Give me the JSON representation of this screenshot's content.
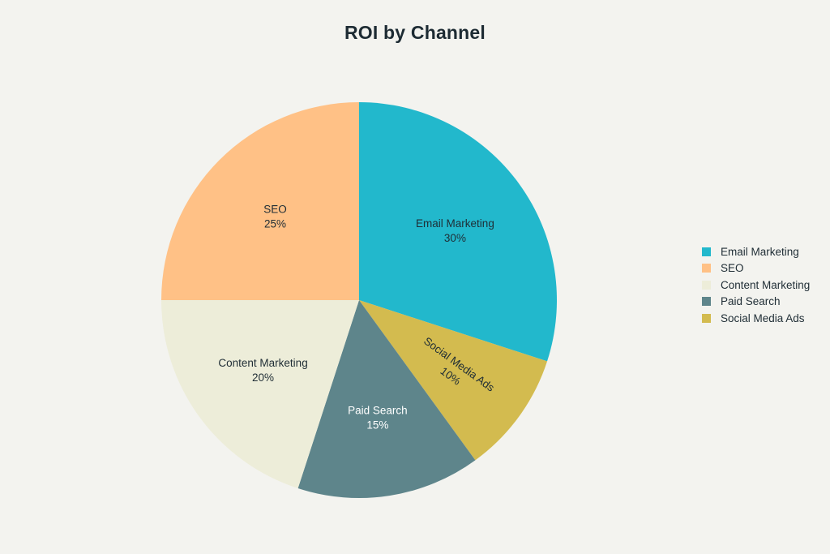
{
  "chart_data": {
    "type": "pie",
    "title": "ROI by Channel",
    "slices": [
      {
        "label": "Email Marketing",
        "value": 30,
        "value_label": "30%",
        "color": "#22b8cc",
        "text_color": "#1f2d35"
      },
      {
        "label": "Social Media Ads",
        "value": 10,
        "value_label": "10%",
        "color": "#d3bb4f",
        "text_color": "#1f2d35"
      },
      {
        "label": "Paid Search",
        "value": 15,
        "value_label": "15%",
        "color": "#5e858b",
        "text_color": "#ffffff"
      },
      {
        "label": "Content Marketing",
        "value": 20,
        "value_label": "20%",
        "color": "#ededd9",
        "text_color": "#1f2d35"
      },
      {
        "label": "SEO",
        "value": 25,
        "value_label": "25%",
        "color": "#ffc186",
        "text_color": "#1f2d35"
      }
    ],
    "legend": {
      "position": "right",
      "entries": [
        {
          "label": "Email Marketing",
          "color": "#22b8cc"
        },
        {
          "label": "SEO",
          "color": "#ffc186"
        },
        {
          "label": "Content Marketing",
          "color": "#ededd9"
        },
        {
          "label": "Paid Search",
          "color": "#5e858b"
        },
        {
          "label": "Social Media Ads",
          "color": "#d3bb4f"
        }
      ]
    }
  }
}
